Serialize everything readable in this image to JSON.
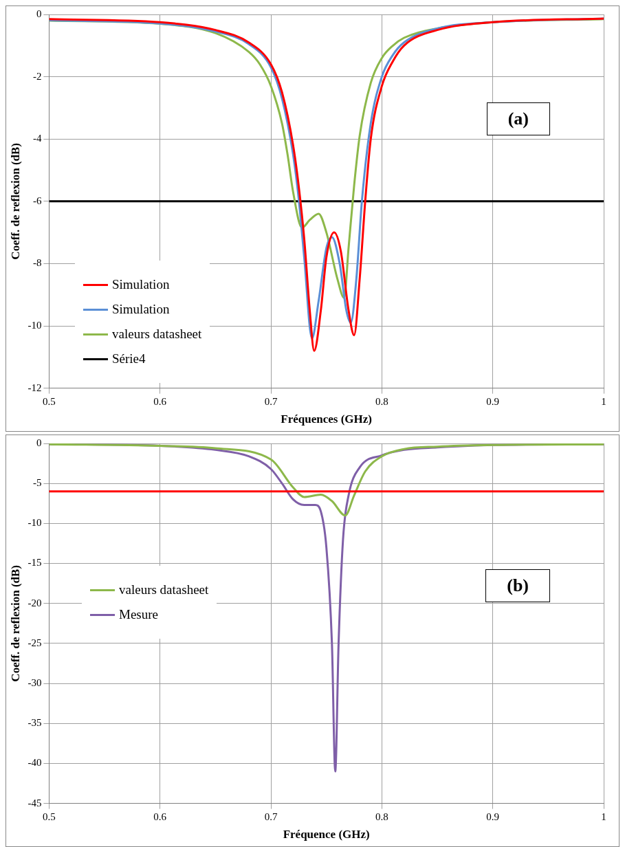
{
  "chart_data": [
    {
      "type": "line",
      "xlabel": "Fréquences (GHz)",
      "ylabel": "Coeff. de reflexion (dB)",
      "xlim": [
        0.5,
        1
      ],
      "xticks": [
        0.5,
        0.6,
        0.7,
        0.8,
        0.9,
        1
      ],
      "ylim": [
        -12,
        0
      ],
      "yticks": [
        -12,
        -10,
        -8,
        -6,
        -4,
        -2,
        0
      ],
      "grid": true,
      "legend": "bottom left",
      "annotations": [
        "(a)"
      ],
      "series": [
        {
          "name": "Simulation",
          "color": "#ff0000",
          "x": [
            0.5,
            0.6,
            0.65,
            0.68,
            0.7,
            0.71,
            0.72,
            0.725,
            0.73,
            0.735,
            0.739,
            0.745,
            0.75,
            0.757,
            0.763,
            0.77,
            0.775,
            0.78,
            0.785,
            0.79,
            0.8,
            0.81,
            0.82,
            0.85,
            0.9,
            1
          ],
          "values": [
            -0.15,
            -0.25,
            -0.5,
            -0.9,
            -1.6,
            -2.5,
            -4.2,
            -5.5,
            -7.2,
            -9.5,
            -10.8,
            -9.5,
            -7.8,
            -7.0,
            -7.6,
            -9.5,
            -10.3,
            -8.5,
            -6.0,
            -4.0,
            -2.3,
            -1.5,
            -1.0,
            -0.5,
            -0.25,
            -0.13
          ]
        },
        {
          "name": "Simulation",
          "color": "#5b8fd6",
          "x": [
            0.5,
            0.6,
            0.65,
            0.68,
            0.7,
            0.71,
            0.72,
            0.725,
            0.73,
            0.737,
            0.743,
            0.75,
            0.755,
            0.762,
            0.768,
            0.772,
            0.777,
            0.782,
            0.79,
            0.8,
            0.81,
            0.82,
            0.85,
            0.9,
            1
          ],
          "values": [
            -0.19,
            -0.29,
            -0.55,
            -0.95,
            -1.7,
            -2.7,
            -4.5,
            -5.9,
            -7.8,
            -10.4,
            -9.2,
            -7.5,
            -7.15,
            -8.0,
            -9.5,
            -9.9,
            -8.5,
            -6.0,
            -3.5,
            -2.0,
            -1.3,
            -0.9,
            -0.45,
            -0.25,
            -0.13
          ]
        },
        {
          "name": "valeurs datasheet",
          "color": "#8db84a",
          "x": [
            0.5,
            0.6,
            0.65,
            0.68,
            0.69,
            0.7,
            0.71,
            0.715,
            0.72,
            0.728,
            0.735,
            0.743,
            0.75,
            0.76,
            0.766,
            0.77,
            0.775,
            0.78,
            0.79,
            0.8,
            0.81,
            0.82,
            0.85,
            0.9,
            1
          ],
          "values": [
            -0.2,
            -0.3,
            -0.6,
            -1.2,
            -1.6,
            -2.3,
            -3.5,
            -4.5,
            -5.7,
            -6.85,
            -6.6,
            -6.4,
            -7.0,
            -8.5,
            -9.1,
            -7.5,
            -5.5,
            -3.9,
            -2.2,
            -1.4,
            -1.0,
            -0.75,
            -0.45,
            -0.25,
            -0.15
          ]
        },
        {
          "name": "Série4",
          "color": "#000000",
          "x": [
            0.5,
            1
          ],
          "values": [
            -6,
            -6
          ]
        }
      ]
    },
    {
      "type": "line",
      "xlabel": "Fréquence (GHz)",
      "ylabel": "Coeff. de reflexion (dB)",
      "xlim": [
        0.5,
        1
      ],
      "xticks": [
        0.5,
        0.6,
        0.7,
        0.8,
        0.9,
        1
      ],
      "ylim": [
        -45,
        0
      ],
      "yticks": [
        -45,
        -40,
        -35,
        -30,
        -25,
        -20,
        -15,
        -10,
        -5,
        0
      ],
      "grid": true,
      "legend": "left",
      "annotations": [
        "(b)"
      ],
      "ref_lines": [
        {
          "axis": "y",
          "value": -6,
          "color": "#ff0000"
        }
      ],
      "series": [
        {
          "name": "valeurs datasheet",
          "color": "#8db84a",
          "x": [
            0.5,
            0.6,
            0.65,
            0.7,
            0.72,
            0.73,
            0.745,
            0.755,
            0.767,
            0.775,
            0.785,
            0.8,
            0.82,
            0.85,
            0.9,
            1
          ],
          "values": [
            -0.1,
            -0.3,
            -0.6,
            -2.0,
            -5.5,
            -6.7,
            -6.4,
            -7.2,
            -9.0,
            -6.5,
            -3.5,
            -1.6,
            -0.7,
            -0.4,
            -0.2,
            -0.1
          ]
        },
        {
          "name": "Mesure",
          "color": "#7f5fa8",
          "x": [
            0.5,
            0.6,
            0.65,
            0.68,
            0.7,
            0.71,
            0.72,
            0.73,
            0.74,
            0.745,
            0.75,
            0.755,
            0.758,
            0.761,
            0.765,
            0.77,
            0.78,
            0.8,
            0.82,
            0.85,
            0.9,
            1
          ],
          "values": [
            -0.1,
            -0.3,
            -0.8,
            -1.6,
            -3.2,
            -5.0,
            -7.0,
            -7.7,
            -7.7,
            -8.5,
            -13,
            -25,
            -41,
            -25,
            -12,
            -6.5,
            -3.0,
            -1.5,
            -0.8,
            -0.5,
            -0.2,
            -0.1
          ]
        }
      ]
    }
  ]
}
